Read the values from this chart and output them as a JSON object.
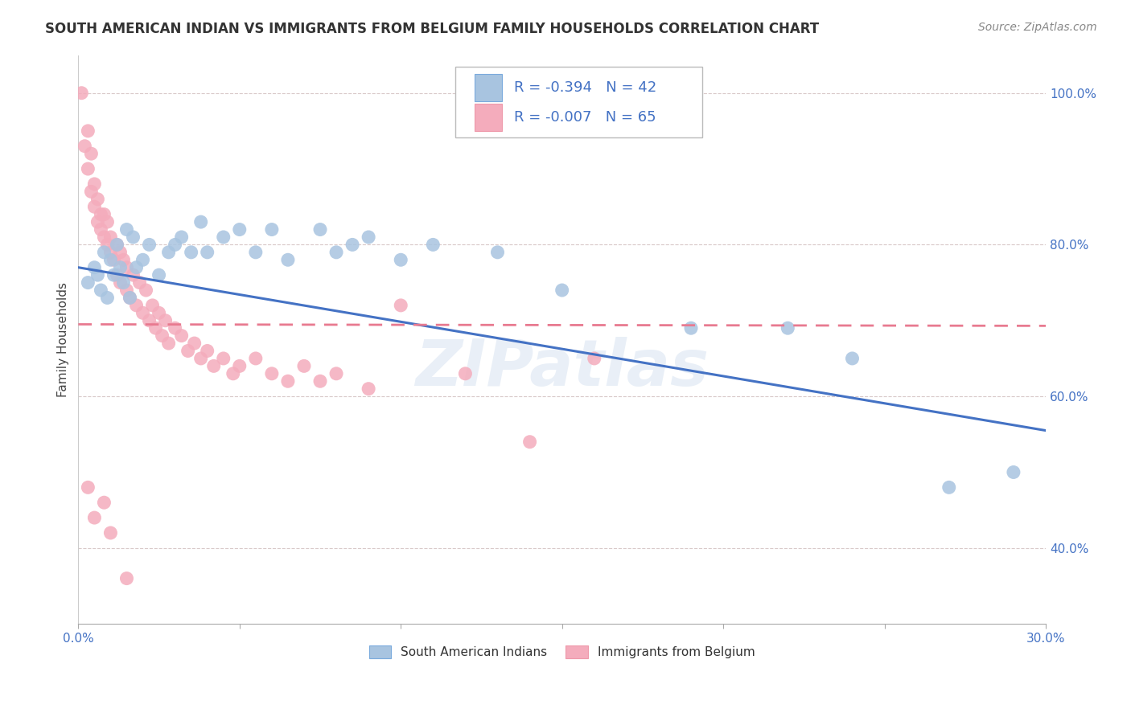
{
  "title": "SOUTH AMERICAN INDIAN VS IMMIGRANTS FROM BELGIUM FAMILY HOUSEHOLDS CORRELATION CHART",
  "source": "Source: ZipAtlas.com",
  "ylabel": "Family Households",
  "xlim": [
    0.0,
    0.3
  ],
  "ylim": [
    0.3,
    1.05
  ],
  "ytick_values": [
    0.4,
    0.6,
    0.8,
    1.0
  ],
  "xtick_values": [
    0.0,
    0.05,
    0.1,
    0.15,
    0.2,
    0.25,
    0.3
  ],
  "xtick_labels": [
    "0.0%",
    "",
    "",
    "",
    "",
    "",
    "30.0%"
  ],
  "legend1_R": "-0.394",
  "legend1_N": "42",
  "legend2_R": "-0.007",
  "legend2_N": "65",
  "blue_color": "#A8C4E0",
  "pink_color": "#F4ACBC",
  "blue_line_color": "#4472C4",
  "pink_line_color": "#E87A90",
  "grid_color": "#D8C8C8",
  "background_color": "#FFFFFF",
  "blue_scatter_x": [
    0.003,
    0.005,
    0.006,
    0.007,
    0.008,
    0.009,
    0.01,
    0.011,
    0.012,
    0.013,
    0.014,
    0.015,
    0.016,
    0.017,
    0.018,
    0.02,
    0.022,
    0.025,
    0.028,
    0.03,
    0.032,
    0.035,
    0.038,
    0.04,
    0.045,
    0.05,
    0.055,
    0.06,
    0.065,
    0.075,
    0.08,
    0.085,
    0.09,
    0.1,
    0.11,
    0.13,
    0.15,
    0.19,
    0.22,
    0.24,
    0.27,
    0.29
  ],
  "blue_scatter_y": [
    0.75,
    0.77,
    0.76,
    0.74,
    0.79,
    0.73,
    0.78,
    0.76,
    0.8,
    0.77,
    0.75,
    0.82,
    0.73,
    0.81,
    0.77,
    0.78,
    0.8,
    0.76,
    0.79,
    0.8,
    0.81,
    0.79,
    0.83,
    0.79,
    0.81,
    0.82,
    0.79,
    0.82,
    0.78,
    0.82,
    0.79,
    0.8,
    0.81,
    0.78,
    0.8,
    0.79,
    0.74,
    0.69,
    0.69,
    0.65,
    0.48,
    0.5
  ],
  "pink_scatter_x": [
    0.001,
    0.002,
    0.003,
    0.003,
    0.004,
    0.004,
    0.005,
    0.005,
    0.006,
    0.006,
    0.007,
    0.007,
    0.008,
    0.008,
    0.009,
    0.009,
    0.01,
    0.01,
    0.011,
    0.012,
    0.012,
    0.013,
    0.013,
    0.014,
    0.015,
    0.015,
    0.016,
    0.017,
    0.018,
    0.019,
    0.02,
    0.021,
    0.022,
    0.023,
    0.024,
    0.025,
    0.026,
    0.027,
    0.028,
    0.03,
    0.032,
    0.034,
    0.036,
    0.038,
    0.04,
    0.042,
    0.045,
    0.048,
    0.05,
    0.055,
    0.06,
    0.065,
    0.07,
    0.075,
    0.08,
    0.09,
    0.1,
    0.12,
    0.14,
    0.16,
    0.003,
    0.005,
    0.008,
    0.01,
    0.015
  ],
  "pink_scatter_y": [
    1.0,
    0.93,
    0.9,
    0.95,
    0.87,
    0.92,
    0.85,
    0.88,
    0.83,
    0.86,
    0.82,
    0.84,
    0.81,
    0.84,
    0.8,
    0.83,
    0.79,
    0.81,
    0.78,
    0.8,
    0.76,
    0.79,
    0.75,
    0.78,
    0.74,
    0.77,
    0.73,
    0.76,
    0.72,
    0.75,
    0.71,
    0.74,
    0.7,
    0.72,
    0.69,
    0.71,
    0.68,
    0.7,
    0.67,
    0.69,
    0.68,
    0.66,
    0.67,
    0.65,
    0.66,
    0.64,
    0.65,
    0.63,
    0.64,
    0.65,
    0.63,
    0.62,
    0.64,
    0.62,
    0.63,
    0.61,
    0.72,
    0.63,
    0.54,
    0.65,
    0.48,
    0.44,
    0.46,
    0.42,
    0.36
  ],
  "blue_trendline_x": [
    0.0,
    0.3
  ],
  "blue_trendline_y": [
    0.77,
    0.555
  ],
  "pink_trendline_x": [
    0.0,
    0.3
  ],
  "pink_trendline_y": [
    0.695,
    0.693
  ],
  "watermark": "ZIPatlas",
  "title_fontsize": 12,
  "label_fontsize": 11,
  "tick_fontsize": 11,
  "source_fontsize": 10,
  "legend_fontsize": 13
}
